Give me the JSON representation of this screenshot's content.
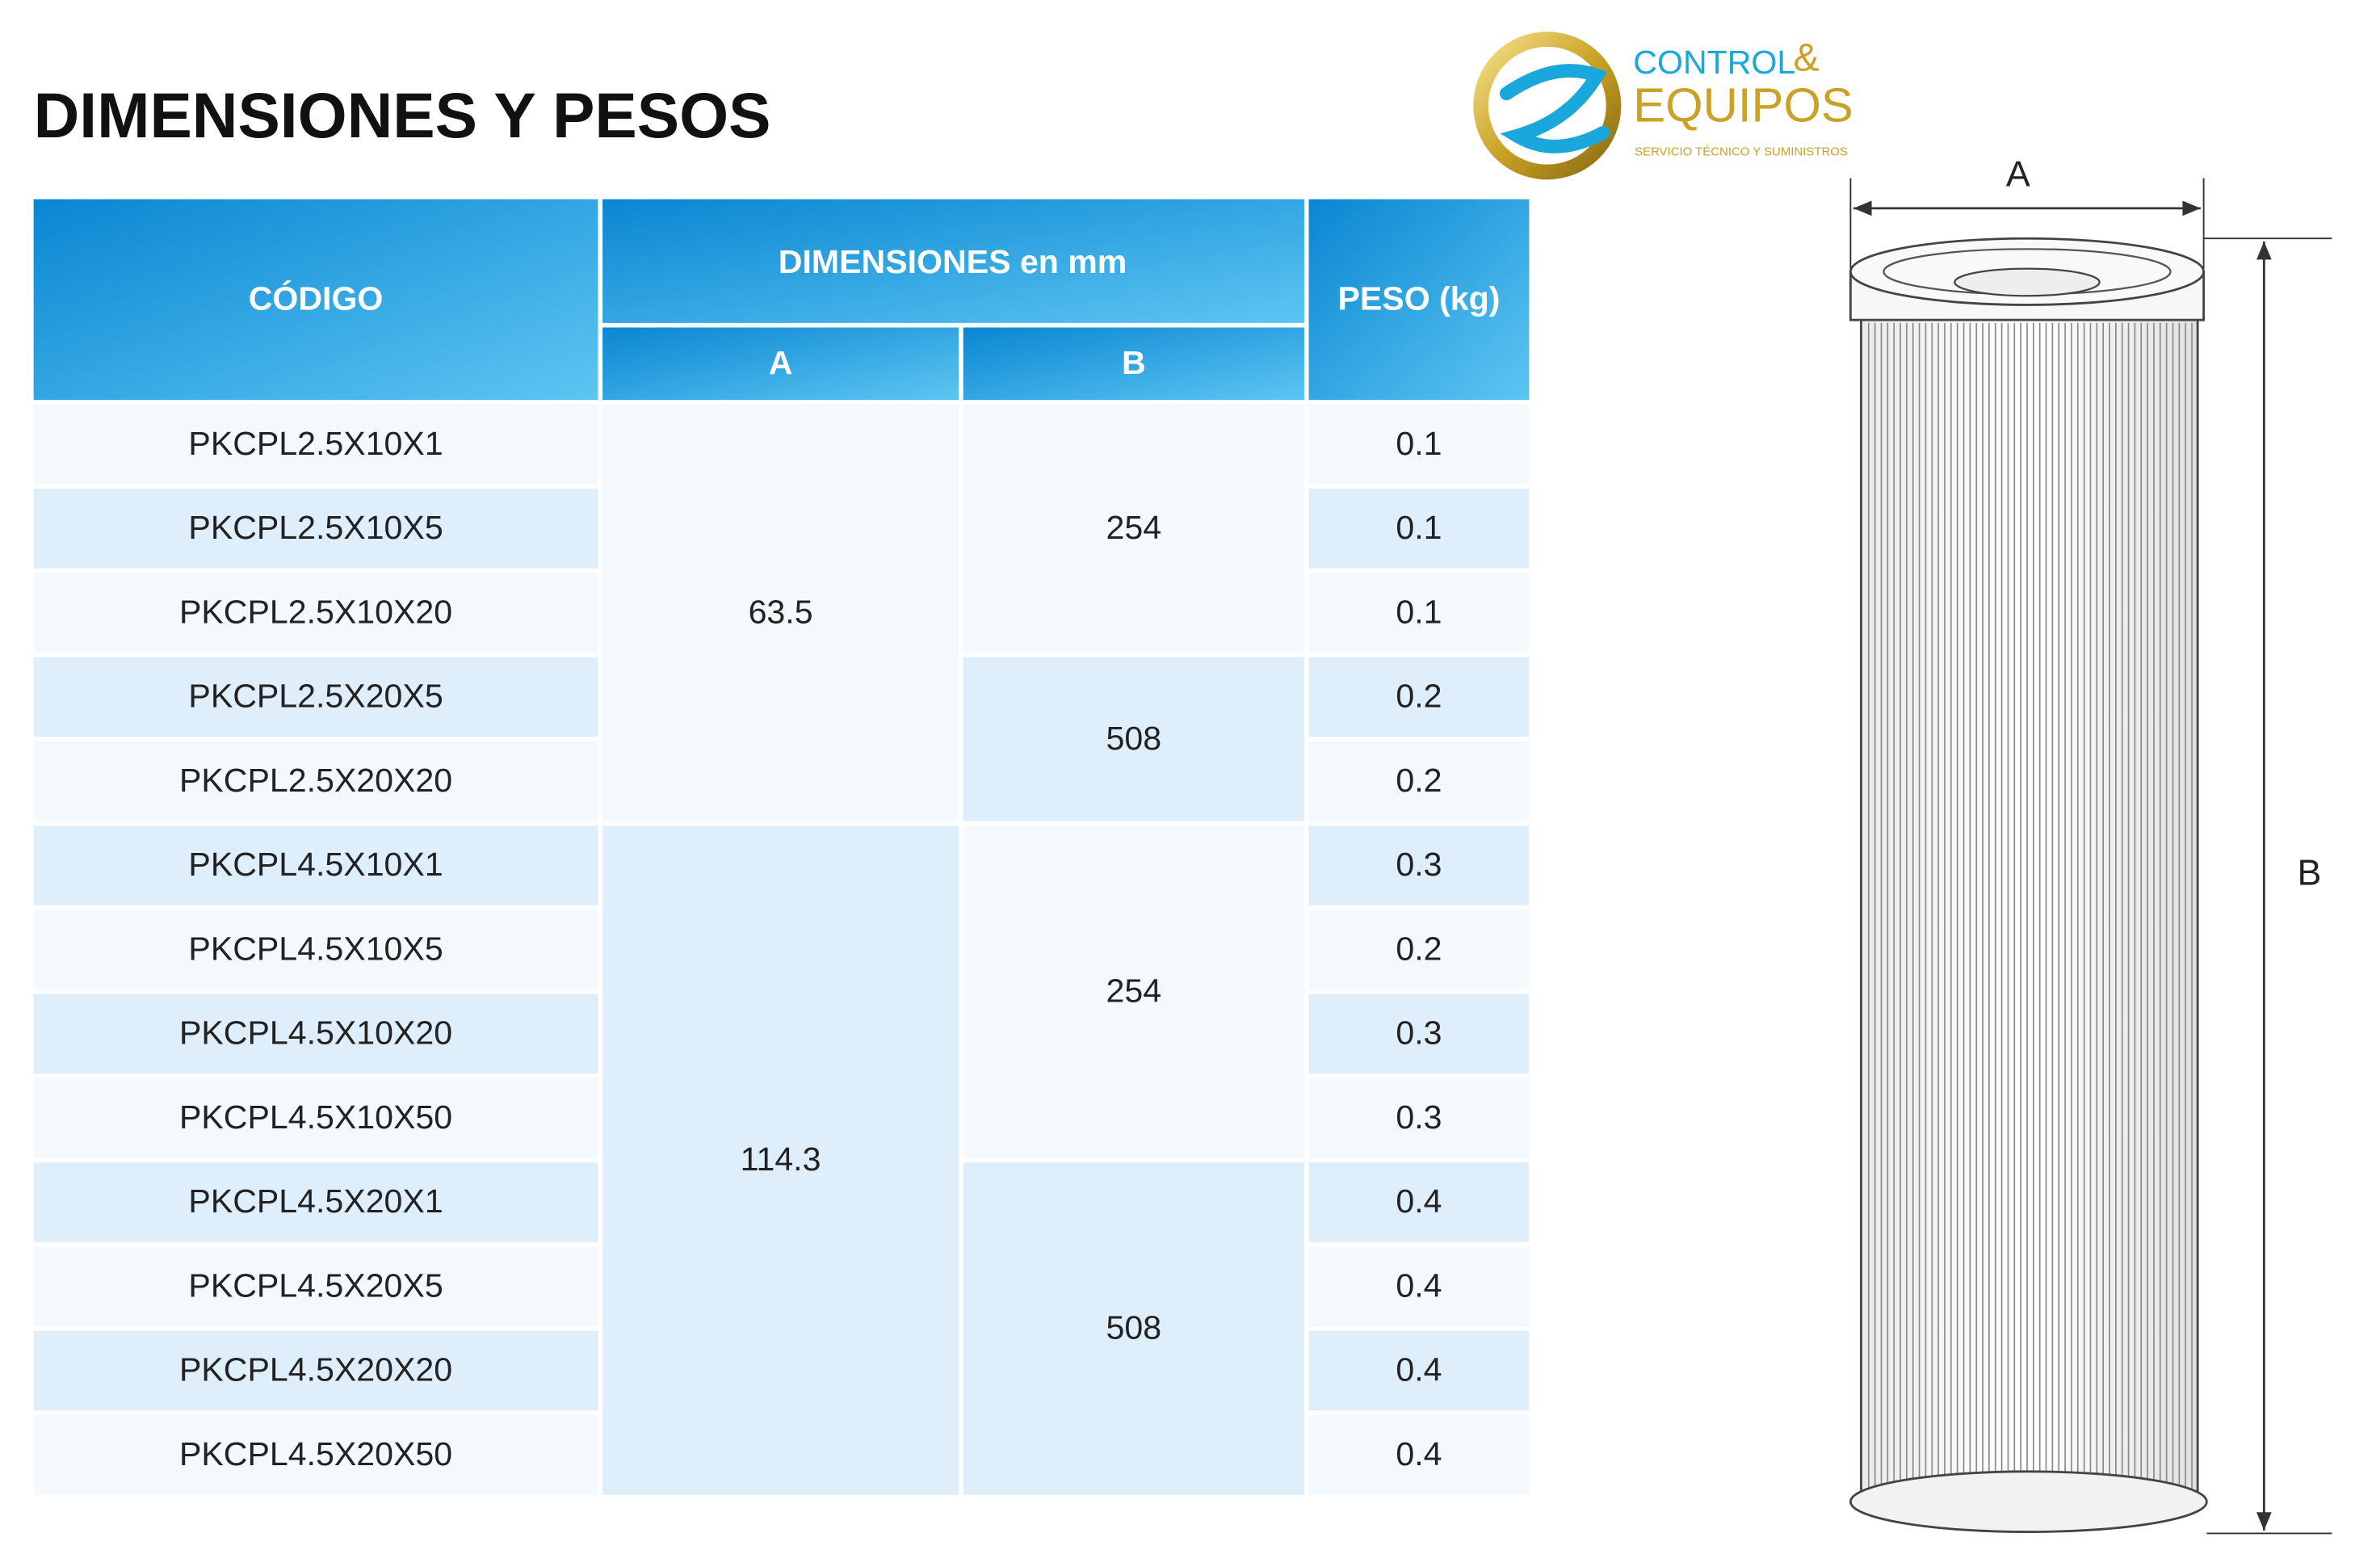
{
  "title": "DIMENSIONES Y PESOS",
  "logo": {
    "line1": "CONTROL",
    "amp": "&",
    "line2": "EQUIPOS",
    "tagline": "SERVICIO TÉCNICO Y SUMINISTROS"
  },
  "table": {
    "headers": {
      "code": "CÓDIGO",
      "dims": "DIMENSIONES  en  mm",
      "a": "A",
      "b": "B",
      "weight": "PESO (kg)"
    },
    "codes": [
      "PKCPL2.5X10X1",
      "PKCPL2.5X10X5",
      "PKCPL2.5X10X20",
      "PKCPL2.5X20X5",
      "PKCPL2.5X20X20",
      "PKCPL4.5X10X1",
      "PKCPL4.5X10X5",
      "PKCPL4.5X10X20",
      "PKCPL4.5X10X50",
      "PKCPL4.5X20X1",
      "PKCPL4.5X20X5",
      "PKCPL4.5X20X20",
      "PKCPL4.5X20X50"
    ],
    "weights": [
      0.1,
      0.1,
      0.1,
      0.2,
      0.2,
      0.3,
      0.2,
      0.3,
      0.3,
      0.4,
      0.4,
      0.4,
      0.4
    ],
    "a_values": [
      63.5,
      114.3
    ],
    "b_values": [
      254,
      508,
      254,
      508
    ]
  },
  "diagram": {
    "a_label": "A",
    "b_label": "B"
  }
}
